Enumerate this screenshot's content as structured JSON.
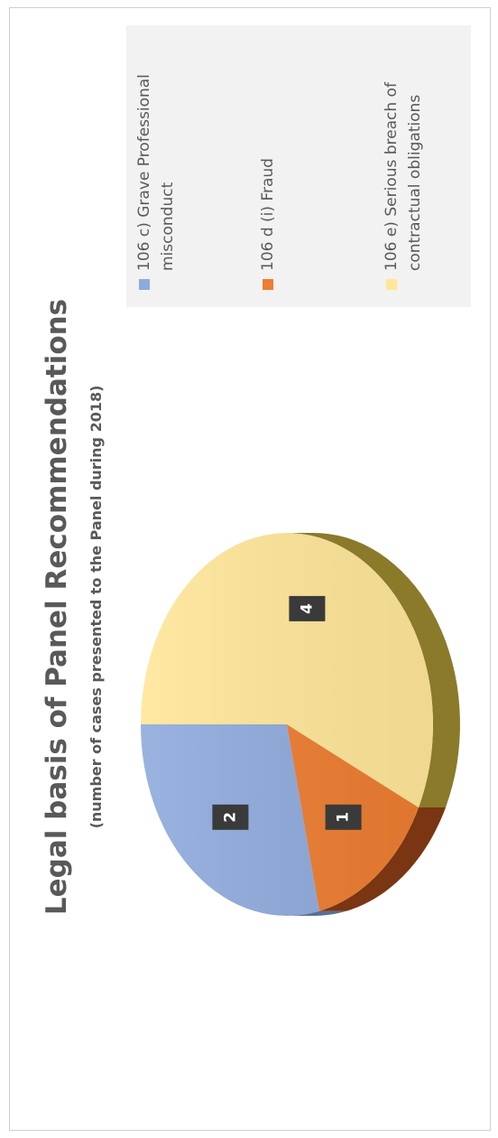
{
  "chart_data": {
    "type": "pie",
    "title": "Legal basis of Panel Recommendations",
    "subtitle": "(number of cases presented to the Panel during 2018)",
    "categories": [
      "106 c) Grave Professional misconduct",
      "106 d (i) Fraud",
      "106 e) Serious breach of contractual obligations"
    ],
    "legend_lines": [
      [
        "106 c) Grave Professional",
        "misconduct"
      ],
      [
        "106 d (i) Fraud"
      ],
      [
        "106 e) Serious breach of",
        "contractual obligations"
      ]
    ],
    "values": [
      2,
      1,
      4
    ],
    "data_labels": [
      "2",
      "1",
      "4"
    ],
    "colors": [
      "#8faadc",
      "#ed7d31",
      "#ffe699"
    ],
    "side_colors": [
      "#5b6f95",
      "#7a3512",
      "#8a7a2a"
    ],
    "legend_position": "right",
    "style": "3d",
    "orientation": "rotated-90-counterclockwise"
  }
}
